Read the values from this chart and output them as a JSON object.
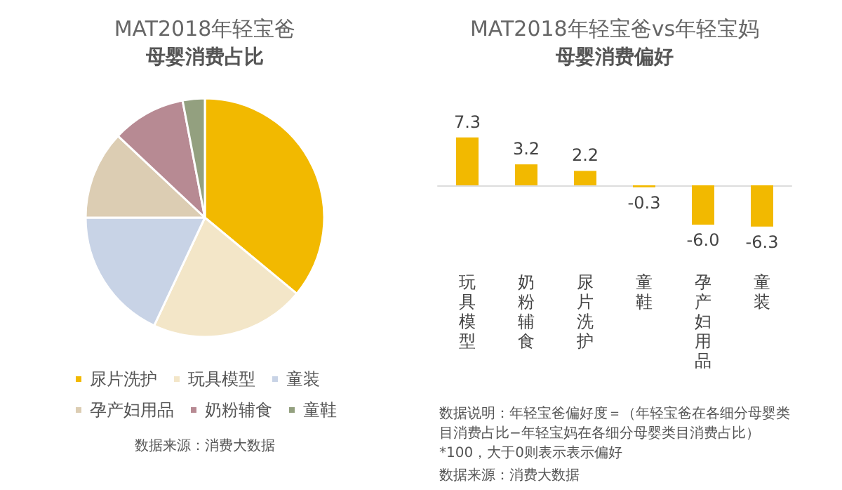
{
  "chart_data": [
    {
      "type": "pie",
      "title": "MAT2018年轻宝爸",
      "subtitle": "母婴消费占比",
      "categories": [
        "尿片洗护",
        "玩具模型",
        "童装",
        "孕产妇用品",
        "奶粉辅食",
        "童鞋"
      ],
      "values": [
        36,
        21,
        18,
        12,
        10,
        3
      ],
      "colors": [
        "#f2b900",
        "#f3e6c8",
        "#c8d3e6",
        "#dccdb3",
        "#b78a93",
        "#93a07f"
      ],
      "legend": "bottom",
      "annotations": [
        "数据来源：消费大数据"
      ]
    },
    {
      "type": "bar",
      "title": "MAT2018年轻宝爸vs年轻宝妈",
      "subtitle": "母婴消费偏好",
      "categories": [
        "玩具模型",
        "奶粉辅食",
        "尿片洗护",
        "童鞋",
        "孕产妇用品",
        "童装"
      ],
      "values": [
        7.3,
        3.2,
        2.2,
        -0.3,
        -6.0,
        -6.3
      ],
      "color": "#f2b900",
      "value_labels": [
        "7.3",
        "3.2",
        "2.2",
        "-0.3",
        "-6.0",
        "-6.3"
      ],
      "annotations": [
        "数据说明：年轻宝爸偏好度＝（年轻宝爸在各细分母婴类目消费占比−年轻宝妈在各细分母婴类目消费占比）*100，大于0则表示表示偏好",
        "数据来源：消费大数据"
      ]
    }
  ]
}
